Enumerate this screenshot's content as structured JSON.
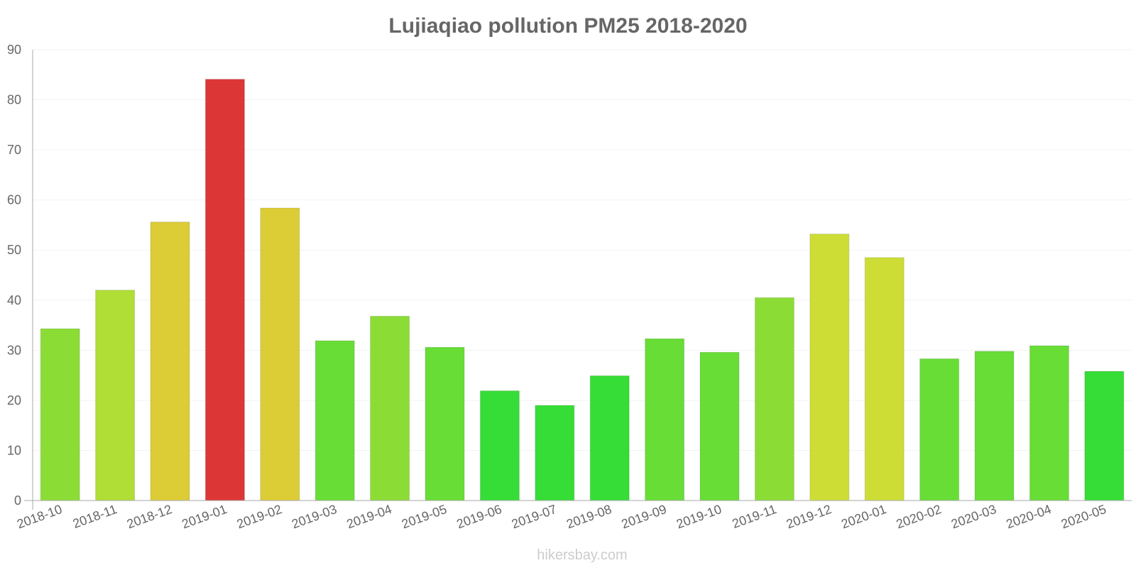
{
  "chart_data": {
    "type": "bar",
    "title": "Lujiaqiao pollution PM25 2018-2020",
    "xlabel": "",
    "ylabel": "",
    "ylim": [
      0,
      90
    ],
    "yticks": [
      0,
      10,
      20,
      30,
      40,
      50,
      60,
      70,
      80,
      90
    ],
    "grid": true,
    "categories": [
      "2018-10",
      "2018-11",
      "2018-12",
      "2019-01",
      "2019-02",
      "2019-03",
      "2019-04",
      "2019-05",
      "2019-06",
      "2019-07",
      "2019-08",
      "2019-09",
      "2019-10",
      "2019-11",
      "2019-12",
      "2020-01",
      "2020-02",
      "2020-03",
      "2020-04",
      "2020-05"
    ],
    "values": [
      34.3,
      42,
      55.6,
      84.1,
      58.4,
      31.9,
      36.8,
      30.6,
      21.9,
      19,
      24.9,
      32.3,
      29.6,
      40.5,
      53.2,
      48.5,
      28.3,
      29.8,
      30.9,
      25.8
    ],
    "colors": [
      "#8bdd36",
      "#b0dd36",
      "#dccc36",
      "#dd3636",
      "#dccc36",
      "#68dd36",
      "#8bdd36",
      "#68dd36",
      "#36dd36",
      "#36dd36",
      "#36dd36",
      "#68dd36",
      "#68dd36",
      "#8bdd36",
      "#cddd36",
      "#cddd36",
      "#68dd36",
      "#68dd36",
      "#68dd36",
      "#36dd36"
    ]
  },
  "watermark": "hikersbay.com"
}
